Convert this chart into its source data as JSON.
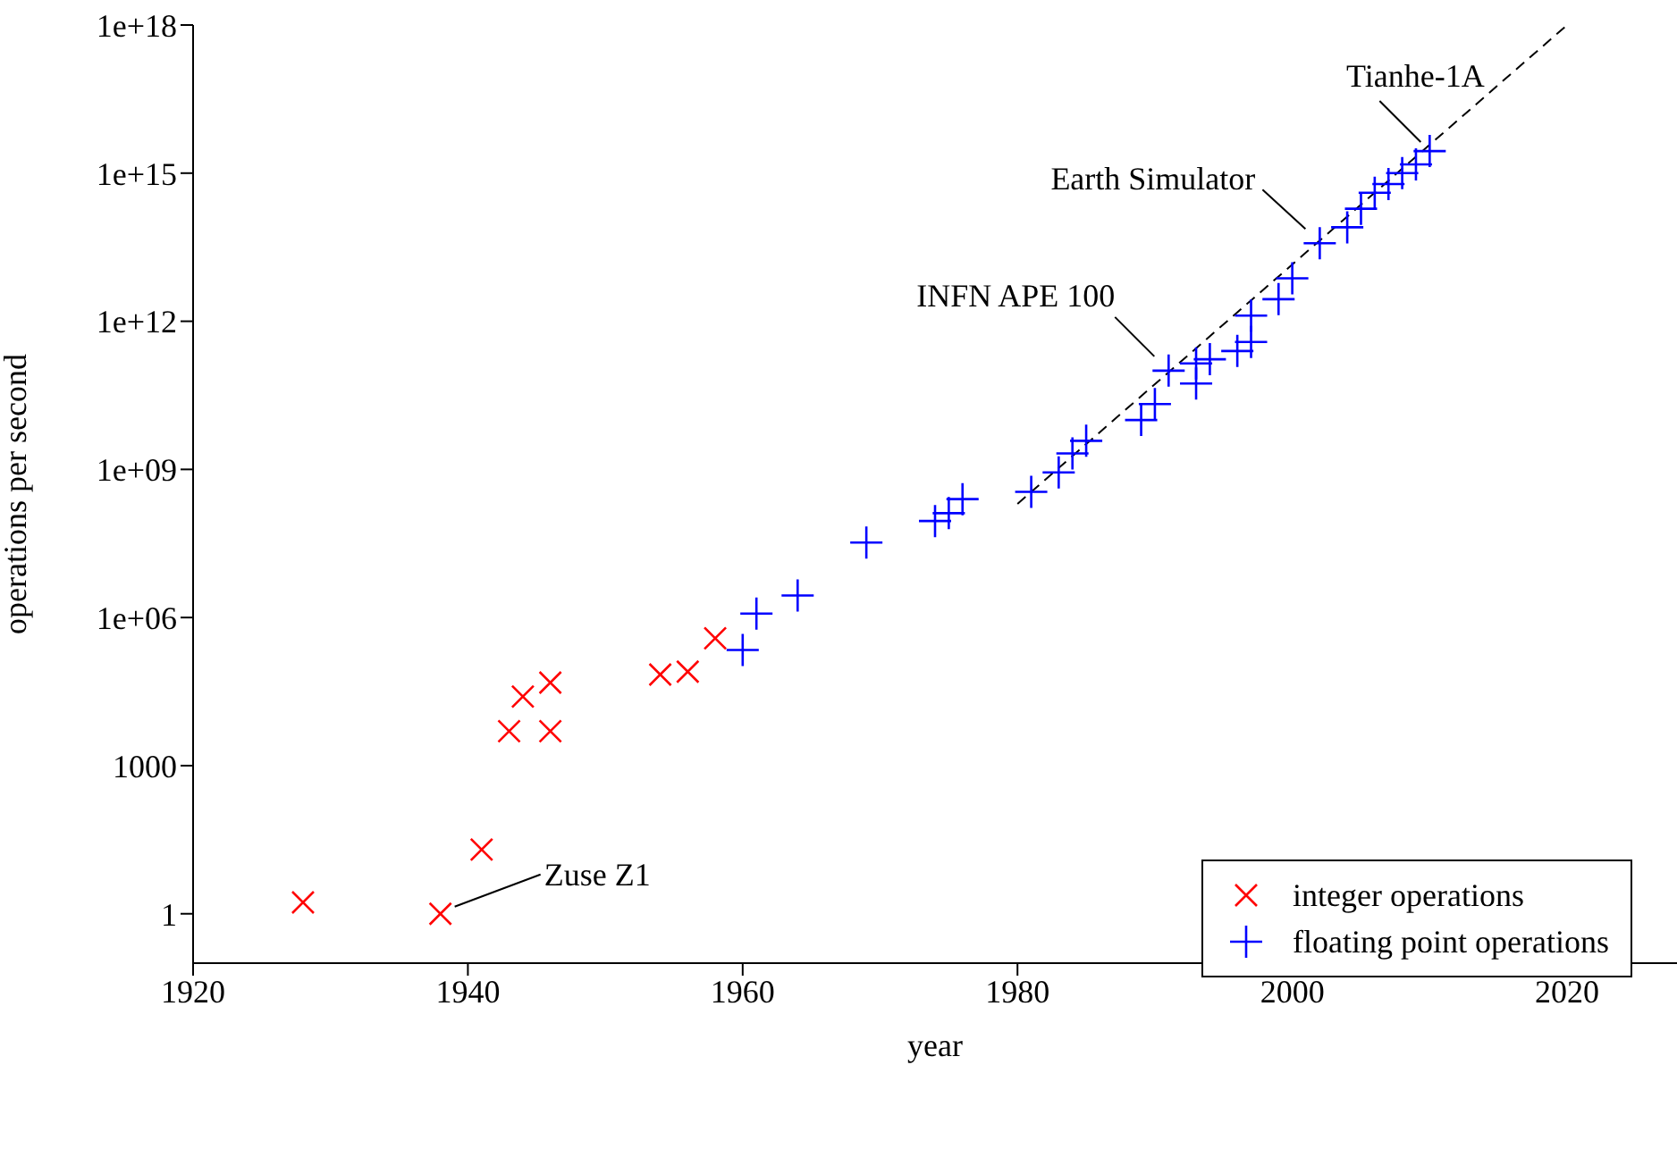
{
  "chart_data": {
    "type": "scatter",
    "xlabel": "year",
    "ylabel": "operations per second",
    "log": "y",
    "xlim": [
      1920,
      2028
    ],
    "xticks": [
      1920,
      1940,
      1960,
      1980,
      2000,
      2020
    ],
    "ylim": [
      0.1,
      1e+18
    ],
    "yticks": [
      1,
      1000,
      {
        "value": 1000000.0,
        "label": "1e+06"
      },
      {
        "value": 1000000000.0,
        "label": "1e+09"
      },
      {
        "value": 1000000000000.0,
        "label": "1e+12"
      },
      {
        "value": 1000000000000000.0,
        "label": "1e+15"
      },
      {
        "value": 1e+18,
        "label": "1e+18"
      }
    ],
    "grid": false,
    "legend": "bottom right",
    "series": [
      {
        "name": "integer operations",
        "color": "#ff0000",
        "marker": "x",
        "x": [
          1928,
          1938,
          1941,
          1943,
          1944,
          1946,
          1946,
          1954,
          1956,
          1958
        ],
        "values": [
          1.7,
          1,
          20,
          5000,
          25000,
          5000,
          48000,
          70000,
          80000,
          380000
        ]
      },
      {
        "name": "floating point operations",
        "color": "#0000ff",
        "marker": "cross",
        "x": [
          1960,
          1961,
          1964,
          1969,
          1974,
          1975,
          1976,
          1981,
          1983,
          1984,
          1985,
          1989,
          1990,
          1991,
          1993,
          1993,
          1994,
          1996,
          1997,
          1997,
          1999,
          2000,
          2002,
          2004,
          2005,
          2006,
          2007,
          2008,
          2009,
          2010
        ],
        "values": [
          220000.0,
          1200000.0,
          2800000.0,
          33000000.0,
          90000000.0,
          130000000.0,
          250000000.0,
          350000000.0,
          870000000.0,
          2100000000.0,
          3800000000.0,
          10000000000.0,
          21000000000.0,
          100000000000.0,
          55000000000.0,
          140000000000.0,
          170000000000.0,
          250000000000.0,
          380000000000.0,
          1300000000000.0,
          2800000000000.0,
          7400000000000.0,
          38000000000000.0,
          80000000000000.0,
          190000000000000.0,
          400000000000000.0,
          600000000000000.0,
          1000000000000000.0,
          1500000000000000.0,
          2800000000000000.0
        ]
      },
      {
        "type": "line",
        "color": "#000000",
        "line_style": "dashed",
        "marker": "none",
        "x": [
          1980,
          2020
        ],
        "values": [
          200000000.0,
          1e+18
        ]
      }
    ],
    "annotations": [
      {
        "text": "Zuse Z1",
        "x": 1938,
        "y": 1
      },
      {
        "text": "INFN APE 100",
        "x": 1991,
        "y": 100000000000.0
      },
      {
        "text": "Earth Simulator",
        "x": 2002,
        "y": 38000000000000.0
      },
      {
        "text": "Tianhe-1A",
        "x": 2010,
        "y": 2800000000000000.0
      }
    ]
  }
}
